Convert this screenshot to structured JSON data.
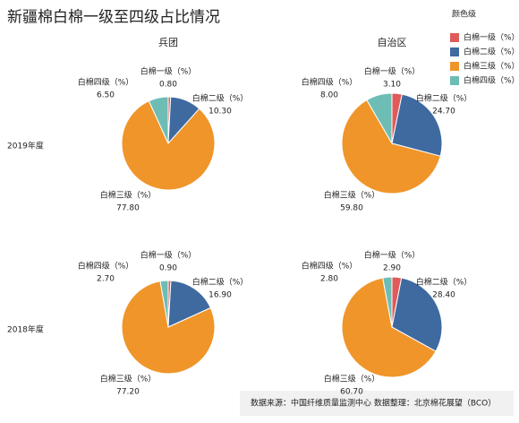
{
  "title": "新疆棉白棉一级至四级占比情况",
  "columns": [
    "兵团",
    "自治区"
  ],
  "rows": [
    "2019年度",
    "2018年度"
  ],
  "legend": {
    "title": "颜色级",
    "items": [
      "白棉一级（%）",
      "白棉二级（%）",
      "白棉三级（%）",
      "白棉四级（%）"
    ]
  },
  "source": "数据来源：中国纤维质量监测中心  数据整理：北京棉花展望（BCO）",
  "chart_data": [
    {
      "type": "pie",
      "colors": [
        "#e05a5a",
        "#3e6aa0",
        "#f0952a",
        "#6dbdb5"
      ],
      "categories": [
        "白棉一级（%）",
        "白棉二级（%）",
        "白棉三级（%）",
        "白棉四级（%）"
      ],
      "values": [
        0.8,
        10.3,
        77.8,
        6.5
      ],
      "value_labels": [
        "0.80",
        "10.30",
        "77.80",
        "6.50"
      ]
    },
    {
      "type": "pie",
      "colors": [
        "#e05a5a",
        "#3e6aa0",
        "#f0952a",
        "#6dbdb5"
      ],
      "categories": [
        "白棉一级（%）",
        "白棉二级（%）",
        "白棉三级（%）",
        "白棉四级（%）"
      ],
      "values": [
        3.1,
        24.7,
        59.8,
        8.0
      ],
      "value_labels": [
        "3.10",
        "24.70",
        "59.80",
        "8.00"
      ]
    },
    {
      "type": "pie",
      "colors": [
        "#e05a5a",
        "#3e6aa0",
        "#f0952a",
        "#6dbdb5"
      ],
      "categories": [
        "白棉一级（%）",
        "白棉二级（%）",
        "白棉三级（%）",
        "白棉四级（%）"
      ],
      "values": [
        0.9,
        16.9,
        77.2,
        2.7
      ],
      "value_labels": [
        "0.90",
        "16.90",
        "77.20",
        "2.70"
      ]
    },
    {
      "type": "pie",
      "colors": [
        "#e05a5a",
        "#3e6aa0",
        "#f0952a",
        "#6dbdb5"
      ],
      "categories": [
        "白棉一级（%）",
        "白棉二级（%）",
        "白棉三级（%）",
        "白棉四级（%）"
      ],
      "values": [
        2.9,
        28.4,
        60.7,
        2.8
      ],
      "value_labels": [
        "2.90",
        "28.40",
        "60.70",
        "2.80"
      ]
    }
  ]
}
